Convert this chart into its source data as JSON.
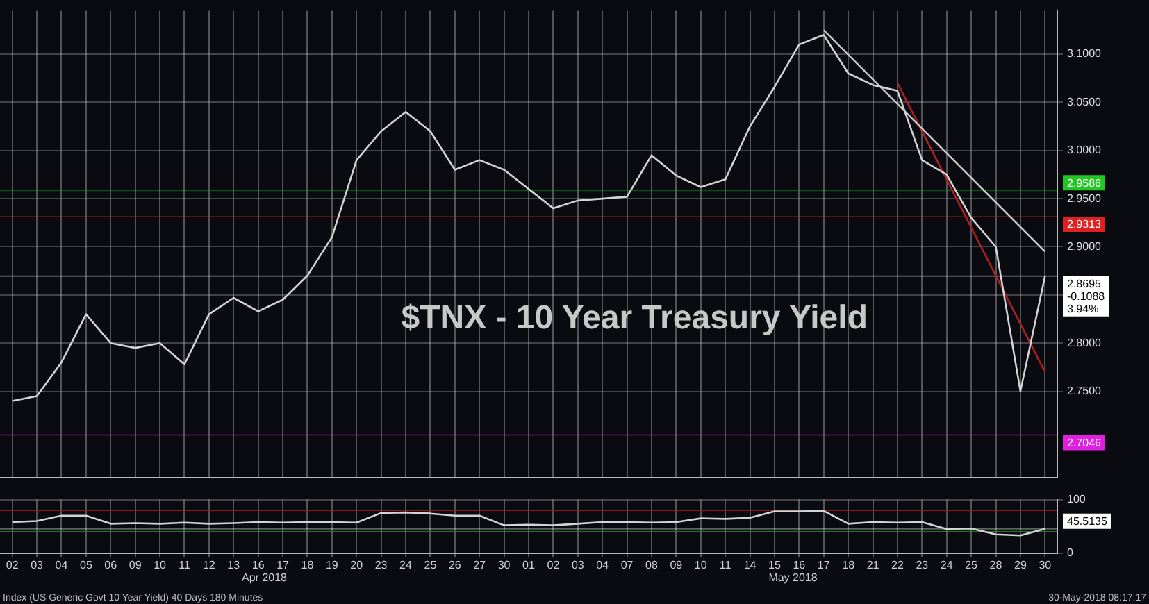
{
  "chart_data": [
    {
      "type": "line",
      "title": "$TNX - 10 Year Treasury Yield",
      "categories": [
        "02",
        "03",
        "04",
        "05",
        "06",
        "09",
        "10",
        "11",
        "12",
        "13",
        "16",
        "17",
        "18",
        "19",
        "20",
        "23",
        "24",
        "25",
        "26",
        "27",
        "30",
        "01",
        "02",
        "03",
        "04",
        "07",
        "08",
        "09",
        "10",
        "11",
        "14",
        "15",
        "16",
        "17",
        "18",
        "21",
        "22",
        "23",
        "24",
        "25",
        "28",
        "29",
        "30"
      ],
      "series": [
        {
          "color": "#d4d4d4",
          "values": [
            2.74,
            2.745,
            2.78,
            2.83,
            2.8,
            2.795,
            2.8,
            2.778,
            2.83,
            2.847,
            2.833,
            2.845,
            2.87,
            2.91,
            2.99,
            3.02,
            3.04,
            3.02,
            2.98,
            2.99,
            2.98,
            2.96,
            2.94,
            2.948,
            2.95,
            2.952,
            2.995,
            2.974,
            2.962,
            2.97,
            3.025,
            3.066,
            3.11,
            3.12,
            3.08,
            3.068,
            3.062,
            2.99,
            2.975,
            2.93,
            2.9,
            2.75,
            2.8695
          ]
        },
        {
          "color": "#c8c8c8",
          "values": [
            null,
            null,
            null,
            null,
            null,
            null,
            null,
            null,
            null,
            null,
            null,
            null,
            null,
            null,
            null,
            null,
            null,
            null,
            null,
            null,
            null,
            null,
            null,
            null,
            null,
            null,
            null,
            null,
            null,
            null,
            null,
            null,
            null,
            3.125,
            null,
            null,
            null,
            null,
            null,
            null,
            null,
            null,
            2.895
          ]
        },
        {
          "color": "#b02020",
          "values": [
            null,
            null,
            null,
            null,
            null,
            null,
            null,
            null,
            null,
            null,
            null,
            null,
            null,
            null,
            null,
            null,
            null,
            null,
            null,
            null,
            null,
            null,
            null,
            null,
            null,
            null,
            null,
            null,
            null,
            null,
            null,
            null,
            null,
            null,
            null,
            null,
            3.07,
            null,
            null,
            null,
            null,
            null,
            2.77
          ]
        }
      ],
      "ylim": [
        2.66,
        3.145
      ],
      "yticks": [
        {
          "value": 2.75,
          "label": "2.7500"
        },
        {
          "value": 2.8,
          "label": "2.8000"
        },
        {
          "value": 2.85,
          "label": null
        },
        {
          "value": 2.9,
          "label": "2.9000"
        },
        {
          "value": 2.95,
          "label": "2.9500"
        },
        {
          "value": 3.0,
          "label": "3.0000"
        },
        {
          "value": 3.05,
          "label": "3.0500"
        },
        {
          "value": 3.1,
          "label": "3.1000"
        }
      ],
      "ref_lines": [
        {
          "axis": "y",
          "value": 2.9586,
          "label": "2.9586",
          "color": "#22c822"
        },
        {
          "axis": "y",
          "value": 2.9313,
          "label": "2.9313",
          "color": "#e02020"
        },
        {
          "axis": "y",
          "value": 2.8695,
          "label": "2.8695 -0.1088 3.94%",
          "color": "#ffffff"
        },
        {
          "axis": "y",
          "value": 2.7046,
          "label": "2.7046",
          "color": "#e020e0"
        }
      ],
      "grid": true,
      "tick_labels": "y",
      "legend": false
    },
    {
      "type": "line",
      "categories": [
        "02",
        "03",
        "04",
        "05",
        "06",
        "09",
        "10",
        "11",
        "12",
        "13",
        "16",
        "17",
        "18",
        "19",
        "20",
        "23",
        "24",
        "25",
        "26",
        "27",
        "30",
        "01",
        "02",
        "03",
        "04",
        "07",
        "08",
        "09",
        "10",
        "11",
        "14",
        "15",
        "16",
        "17",
        "18",
        "21",
        "22",
        "23",
        "24",
        "25",
        "28",
        "29",
        "30"
      ],
      "series": [
        {
          "color": "#d4d4d4",
          "values": [
            58,
            60,
            70,
            70,
            55,
            56,
            55,
            57,
            55,
            56,
            58,
            57,
            58,
            58,
            57,
            75,
            76,
            74,
            70,
            70,
            52,
            53,
            52,
            55,
            58,
            58,
            57,
            58,
            65,
            64,
            66,
            78,
            78,
            79,
            55,
            58,
            57,
            58,
            45,
            46,
            35,
            33,
            45.5135
          ]
        }
      ],
      "ylim": [
        0,
        100
      ],
      "yticks": [
        0,
        100
      ],
      "ref_lines": [
        {
          "axis": "y",
          "value": 80,
          "color": "#a01818"
        },
        {
          "axis": "y",
          "value": 40,
          "color": "#1f8a1f"
        },
        {
          "axis": "y",
          "value": 45.5135,
          "label": "45.5135",
          "color": "#ffffff"
        }
      ],
      "annotations": [
        "Apr 2018",
        "May 2018",
        "Index (US Generic Govt 10 Year Yield) 40 Days 180 Minutes",
        "30-May-2018 08:17:17"
      ],
      "grid": true,
      "legend": false
    }
  ]
}
